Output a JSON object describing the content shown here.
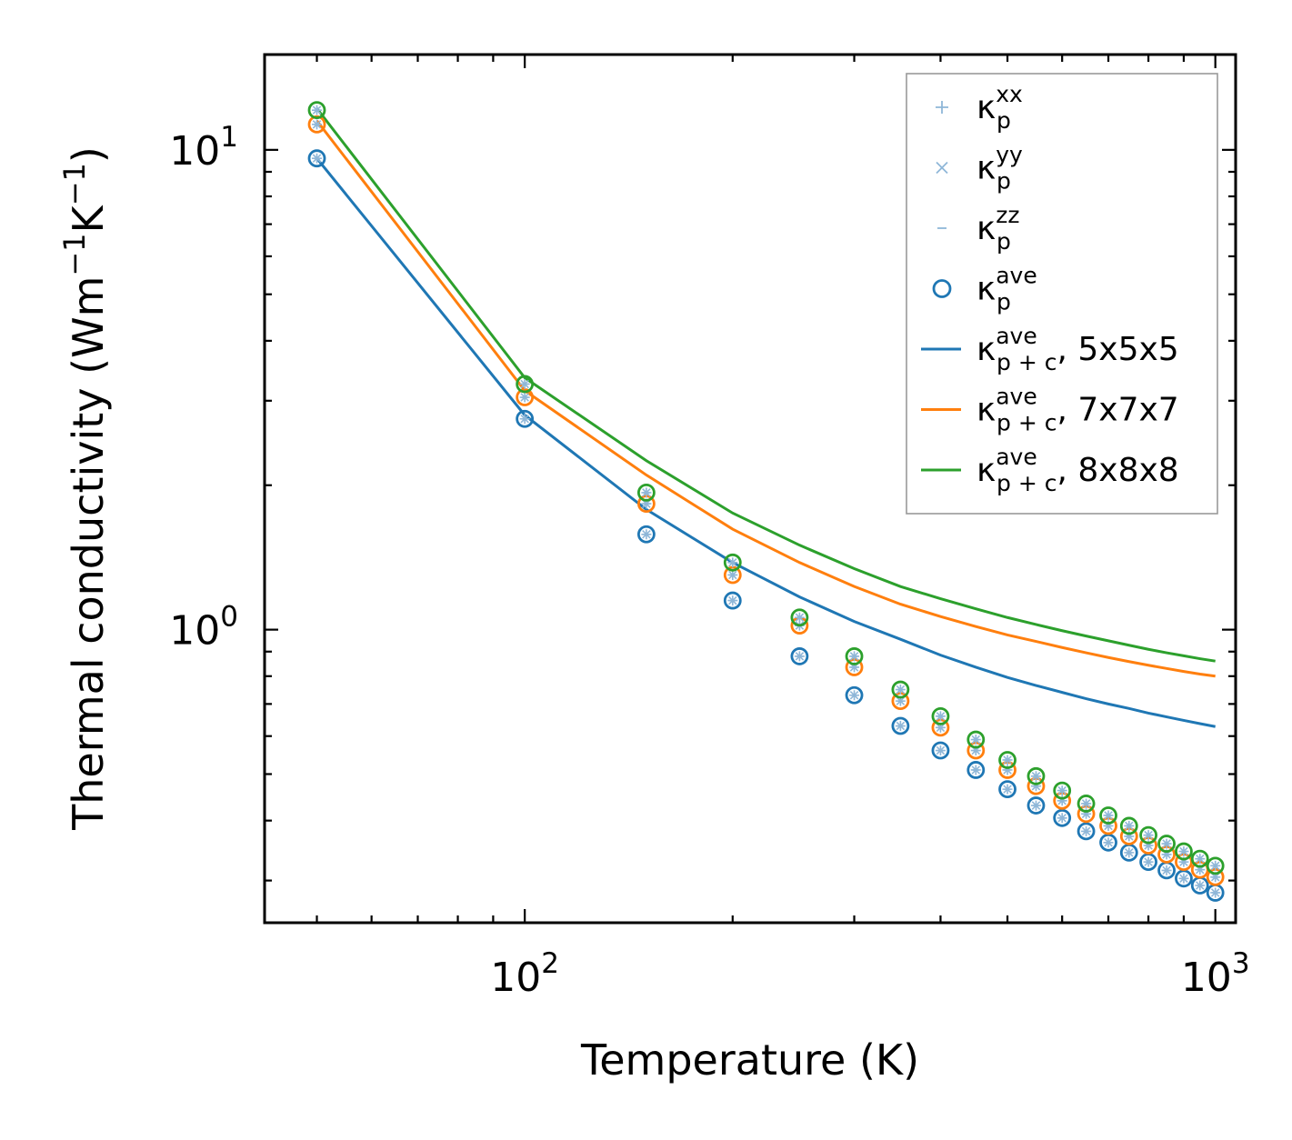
{
  "chart_data": {
    "type": "scatter",
    "title": "",
    "xscale": "log",
    "yscale": "log",
    "xlim": [
      42,
      1070
    ],
    "ylim": [
      0.245,
      15.8
    ],
    "xlabel": "Temperature (K)",
    "ylabel_main": "Thermal conductivity (Wm",
    "ylabel_sup1": "−1",
    "ylabel_mid": "K",
    "ylabel_sup2": "−1",
    "ylabel_end": ")",
    "ylabel": "Thermal conductivity (Wm−1K−1)",
    "xticks": [
      {
        "value": 100,
        "base": "10",
        "exp": "2"
      },
      {
        "value": 1000,
        "base": "10",
        "exp": "3"
      }
    ],
    "yticks": [
      {
        "value": 1,
        "base": "10",
        "exp": "0"
      },
      {
        "value": 10,
        "base": "10",
        "exp": "1"
      }
    ],
    "temperatures": [
      50,
      100,
      150,
      200,
      250,
      300,
      350,
      400,
      450,
      500,
      550,
      600,
      650,
      700,
      750,
      800,
      850,
      900,
      950,
      1000
    ],
    "series": [
      {
        "name": "5x5x5",
        "color": "#1f77b4",
        "kp_ave": [
          9.6,
          2.75,
          1.58,
          1.15,
          0.88,
          0.73,
          0.63,
          0.56,
          0.51,
          0.465,
          0.43,
          0.405,
          0.38,
          0.36,
          0.343,
          0.328,
          0.315,
          0.303,
          0.293,
          0.283
        ],
        "kpc_ave": [
          9.6,
          2.8,
          1.78,
          1.38,
          1.17,
          1.04,
          0.955,
          0.885,
          0.835,
          0.795,
          0.765,
          0.74,
          0.718,
          0.7,
          0.685,
          0.67,
          0.658,
          0.647,
          0.637,
          0.628
        ]
      },
      {
        "name": "7x7x7",
        "color": "#ff7f0e",
        "kp_ave": [
          11.3,
          3.05,
          1.83,
          1.3,
          1.02,
          0.835,
          0.71,
          0.625,
          0.56,
          0.51,
          0.472,
          0.44,
          0.413,
          0.39,
          0.371,
          0.355,
          0.34,
          0.328,
          0.316,
          0.305
        ],
        "kpc_ave": [
          11.5,
          3.15,
          2.1,
          1.62,
          1.38,
          1.23,
          1.13,
          1.065,
          1.015,
          0.975,
          0.945,
          0.918,
          0.895,
          0.875,
          0.858,
          0.843,
          0.83,
          0.818,
          0.808,
          0.8
        ]
      },
      {
        "name": "8x8x8",
        "color": "#2ca02c",
        "kp_ave": [
          12.1,
          3.25,
          1.93,
          1.38,
          1.06,
          0.88,
          0.75,
          0.66,
          0.59,
          0.535,
          0.495,
          0.462,
          0.434,
          0.41,
          0.39,
          0.373,
          0.358,
          0.345,
          0.333,
          0.322
        ],
        "kpc_ave": [
          12.2,
          3.35,
          2.25,
          1.75,
          1.5,
          1.34,
          1.23,
          1.16,
          1.105,
          1.06,
          1.025,
          0.995,
          0.97,
          0.948,
          0.928,
          0.91,
          0.895,
          0.882,
          0.87,
          0.86
        ]
      }
    ],
    "legend": {
      "position": "top-right",
      "entries": [
        {
          "marker": "plus",
          "symbol": "κ",
          "sub": "p",
          "sup": "xx",
          "suffix": "",
          "color": "#8fb7d8"
        },
        {
          "marker": "cross",
          "symbol": "κ",
          "sub": "p",
          "sup": "yy",
          "suffix": "",
          "color": "#8fb7d8"
        },
        {
          "marker": "dash",
          "symbol": "κ",
          "sub": "p",
          "sup": "zz",
          "suffix": "",
          "color": "#8fb7d8"
        },
        {
          "marker": "circle",
          "symbol": "κ",
          "sub": "p",
          "sup": "ave",
          "suffix": "",
          "color": "#1f77b4"
        },
        {
          "marker": "line",
          "symbol": "κ",
          "sub": "p + c",
          "sup": "ave",
          "suffix": ", 5x5x5",
          "color": "#1f77b4"
        },
        {
          "marker": "line",
          "symbol": "κ",
          "sub": "p + c",
          "sup": "ave",
          "suffix": ", 7x7x7",
          "color": "#ff7f0e"
        },
        {
          "marker": "line",
          "symbol": "κ",
          "sub": "p + c",
          "sup": "ave",
          "suffix": ", 8x8x8",
          "color": "#2ca02c"
        }
      ]
    }
  }
}
